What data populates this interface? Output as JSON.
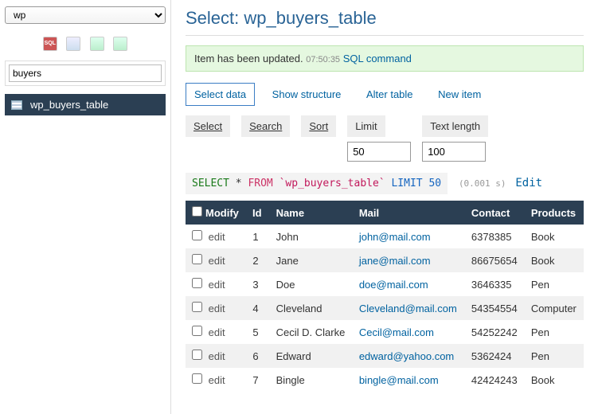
{
  "sidebar": {
    "db_selected": "wp",
    "search_value": "buyers",
    "table_name": "wp_buyers_table"
  },
  "page": {
    "title_prefix": "Select: ",
    "title_table": "wp_buyers_table"
  },
  "message": {
    "text": "Item has been updated.",
    "time": "07:50:35",
    "link": "SQL command"
  },
  "tabs": {
    "select": "Select data",
    "structure": "Show structure",
    "alter": "Alter table",
    "newitem": "New item"
  },
  "filters": {
    "select": "Select",
    "search": "Search",
    "sort": "Sort",
    "limit_label": "Limit",
    "limit_value": "50",
    "textlen_label": "Text length",
    "textlen_value": "100"
  },
  "query": {
    "select": "SELECT",
    "star": "*",
    "from": "FROM",
    "table": "`wp_buyers_table`",
    "limit": "LIMIT",
    "limit_n": "50",
    "timing": "(0.001 s)",
    "edit": "Edit"
  },
  "cols": {
    "modify": "Modify",
    "id": "Id",
    "name": "Name",
    "mail": "Mail",
    "contact": "Contact",
    "products": "Products",
    "edit": "edit"
  },
  "rows": [
    {
      "id": "1",
      "name": "John",
      "mail": "john@mail.com",
      "contact": "6378385",
      "products": "Book"
    },
    {
      "id": "2",
      "name": "Jane",
      "mail": "jane@mail.com",
      "contact": "86675654",
      "products": "Book"
    },
    {
      "id": "3",
      "name": "Doe",
      "mail": "doe@mail.com",
      "contact": "3646335",
      "products": "Pen"
    },
    {
      "id": "4",
      "name": "Cleveland",
      "mail": "Cleveland@mail.com",
      "contact": "54354554",
      "products": "Computer"
    },
    {
      "id": "5",
      "name": "Cecil D. Clarke",
      "mail": "Cecil@mail.com",
      "contact": "54252242",
      "products": "Pen"
    },
    {
      "id": "6",
      "name": "Edward",
      "mail": "edward@yahoo.com",
      "contact": "5362424",
      "products": "Pen"
    },
    {
      "id": "7",
      "name": "Bingle",
      "mail": "bingle@mail.com",
      "contact": "42424243",
      "products": "Book"
    }
  ]
}
